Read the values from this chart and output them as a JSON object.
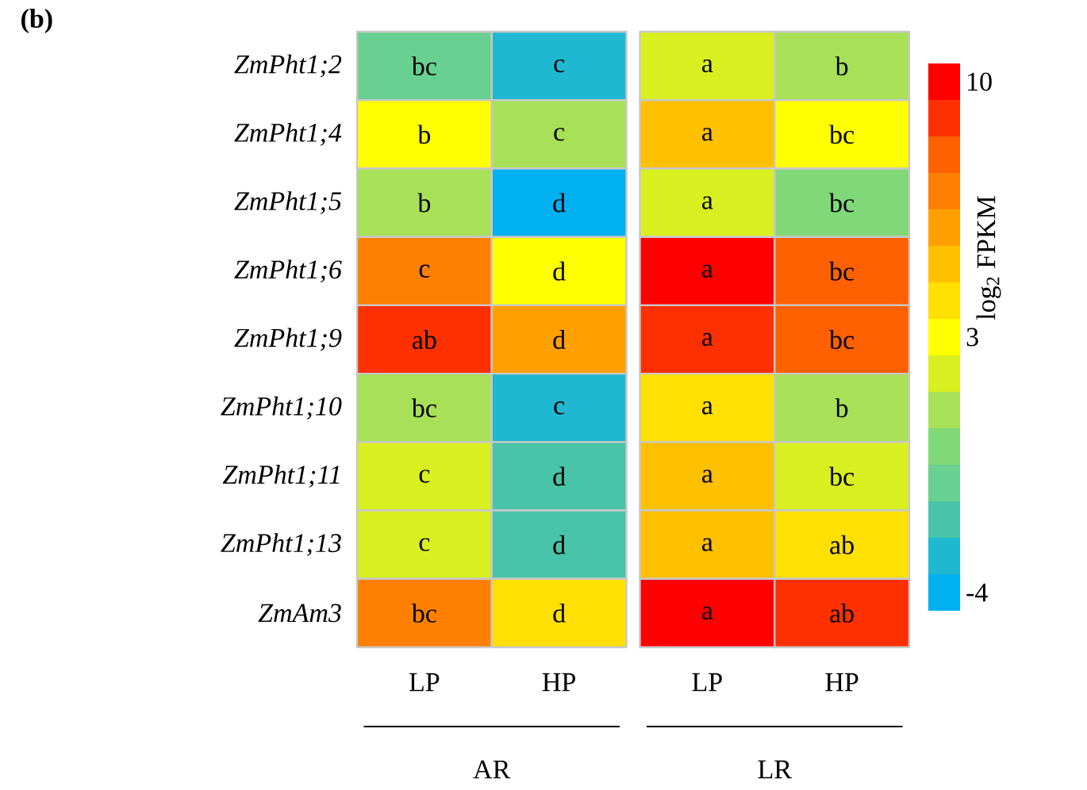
{
  "chart_data": {
    "type": "heatmap",
    "title": "(b)",
    "categories": [
      "LP",
      "HP",
      "LP",
      "HP"
    ],
    "y_categories": [
      "ZmPht1;2",
      "ZmPht1;4",
      "ZmPht1;5",
      "ZmPht1;6",
      "ZmPht1;9",
      "ZmPht1;10",
      "ZmPht1;11",
      "ZmPht1;13",
      "ZmAm3"
    ],
    "cells": [
      [
        -1,
        -3,
        2,
        1
      ],
      [
        3,
        1,
        5,
        3
      ],
      [
        1,
        -4,
        2,
        0
      ],
      [
        7,
        3,
        10,
        8
      ],
      [
        9,
        6,
        9,
        8
      ],
      [
        1,
        -3,
        4,
        1
      ],
      [
        2,
        -2,
        5,
        2
      ],
      [
        2,
        -2,
        5,
        4
      ],
      [
        7,
        4,
        10,
        9
      ]
    ],
    "cell_labels": [
      [
        "bc",
        "c",
        "a",
        "b"
      ],
      [
        "b",
        "c",
        "a",
        "bc"
      ],
      [
        "b",
        "d",
        "a",
        "bc"
      ],
      [
        "c",
        "d",
        "a",
        "bc"
      ],
      [
        "ab",
        "d",
        "a",
        "bc"
      ],
      [
        "bc",
        "c",
        "a",
        "b"
      ],
      [
        "c",
        "d",
        "a",
        "bc"
      ],
      [
        "c",
        "d",
        "a",
        "ab"
      ],
      [
        "bc",
        "d",
        "a",
        "ab"
      ]
    ],
    "annotations": [
      "AR",
      "LR"
    ],
    "clim": [
      -4.5,
      10.5
    ],
    "cticks": [
      -4,
      3,
      10
    ],
    "clabel": "log$_{2}$ FPKM"
  }
}
